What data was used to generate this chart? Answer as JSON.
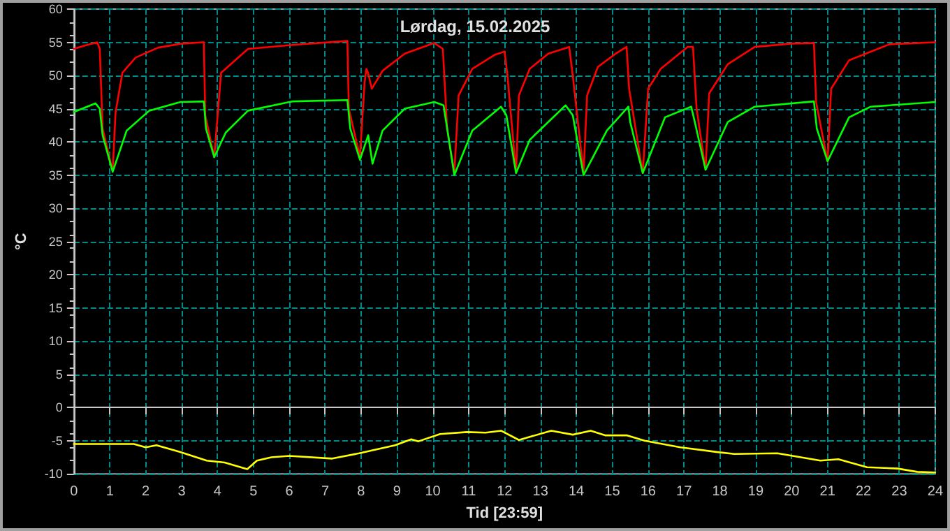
{
  "chart_data": {
    "type": "line",
    "title": "Lørdag, 15.02.2025",
    "xlabel": "Tid [23:59]",
    "ylabel": "°C",
    "xlim": [
      0,
      24
    ],
    "xticks": [
      0,
      1,
      2,
      3,
      4,
      5,
      6,
      7,
      8,
      9,
      10,
      11,
      12,
      13,
      14,
      15,
      16,
      17,
      18,
      19,
      20,
      21,
      22,
      23,
      24
    ],
    "ylim": [
      -10,
      60
    ],
    "yticks": [
      -10,
      -5,
      0,
      5,
      10,
      15,
      20,
      25,
      30,
      35,
      40,
      45,
      50,
      55,
      60
    ],
    "grid": true,
    "marker": "none",
    "line_style": "solid",
    "series": [
      {
        "color": "#ff0000",
        "x": [
          0,
          0.3,
          0.65,
          0.72,
          0.8,
          1.08,
          1.16,
          1.35,
          1.72,
          2.35,
          3.0,
          3.62,
          3.66,
          3.91,
          4.1,
          4.85,
          6.1,
          7.62,
          7.66,
          7.97,
          8.1,
          8.15,
          8.2,
          8.3,
          8.6,
          9.22,
          10.04,
          10.28,
          10.4,
          10.6,
          10.72,
          11.1,
          11.72,
          12.0,
          12.08,
          12.32,
          12.4,
          12.7,
          13.22,
          13.8,
          13.9,
          14.2,
          14.3,
          14.6,
          15.1,
          15.4,
          15.47,
          15.85,
          16.0,
          16.35,
          17.1,
          17.25,
          17.35,
          17.6,
          17.7,
          18.22,
          18.97,
          20.0,
          20.62,
          20.68,
          21.0,
          21.1,
          21.6,
          22.72,
          24
        ],
        "values": [
          54,
          54.5,
          55,
          54,
          42,
          35.6,
          44.4,
          50.4,
          52.7,
          54.2,
          54.8,
          55,
          44,
          37.7,
          50.4,
          54,
          54.6,
          55.2,
          45,
          37.7,
          49,
          51,
          50.3,
          48,
          50.7,
          53.3,
          54.9,
          54,
          42,
          35.3,
          47,
          51,
          53.1,
          53.6,
          50,
          35.3,
          47,
          51,
          53.3,
          54.3,
          50,
          35.3,
          47,
          51.3,
          53.3,
          54.3,
          48,
          35.3,
          48,
          51,
          54.3,
          54.3,
          45,
          35.8,
          47.3,
          51.7,
          54.3,
          54.8,
          54.9,
          46,
          37,
          48,
          52.3,
          54.7,
          55
        ]
      },
      {
        "color": "#00ff00",
        "x": [
          0,
          0.6,
          0.72,
          0.8,
          1.08,
          1.47,
          2.1,
          2.97,
          3.62,
          3.68,
          3.91,
          4.23,
          4.85,
          6.1,
          7.62,
          7.7,
          7.97,
          8.2,
          8.32,
          8.6,
          9.22,
          10.04,
          10.3,
          10.6,
          11.1,
          11.9,
          12.05,
          12.32,
          12.7,
          13.7,
          13.9,
          14.2,
          14.85,
          15.45,
          15.5,
          15.85,
          16.47,
          17.2,
          17.3,
          17.6,
          18.22,
          18.97,
          20.62,
          20.7,
          21.0,
          21.6,
          22.2,
          24
        ],
        "values": [
          44.5,
          45.8,
          45,
          41,
          35.5,
          41.7,
          44.7,
          46,
          46.1,
          42,
          37.7,
          41.4,
          44.7,
          46.1,
          46.3,
          42,
          37.3,
          41,
          36.7,
          41.7,
          45,
          46,
          45.5,
          35,
          41.7,
          45.3,
          44,
          35.3,
          40.3,
          45.5,
          44,
          35,
          41.7,
          45.3,
          43,
          35.3,
          43.7,
          45.3,
          43,
          35.8,
          43,
          45.3,
          46.1,
          42,
          37.1,
          43.7,
          45.3,
          46
        ]
      },
      {
        "color": "#ffff00",
        "x": [
          0,
          1.67,
          2,
          2.3,
          2.95,
          3.7,
          4.2,
          4.83,
          5.1,
          5.5,
          6,
          7.2,
          7.95,
          8.95,
          9.4,
          9.6,
          10.2,
          10.95,
          11.47,
          11.9,
          12.4,
          13.3,
          13.9,
          14.4,
          14.8,
          15.4,
          15.9,
          16.9,
          17.9,
          18.4,
          19.6,
          20.8,
          21.3,
          22.1,
          22.95,
          23.5,
          24
        ],
        "values": [
          -5.5,
          -5.5,
          -6,
          -5.7,
          -6.7,
          -8,
          -8.3,
          -9.3,
          -8,
          -7.5,
          -7.3,
          -7.7,
          -6.9,
          -5.7,
          -4.8,
          -5.1,
          -4,
          -3.7,
          -3.8,
          -3.5,
          -4.9,
          -3.5,
          -4.1,
          -3.5,
          -4.2,
          -4.2,
          -5,
          -6,
          -6.7,
          -7,
          -6.9,
          -8,
          -7.8,
          -9,
          -9.2,
          -9.7,
          -9.8
        ]
      }
    ]
  }
}
